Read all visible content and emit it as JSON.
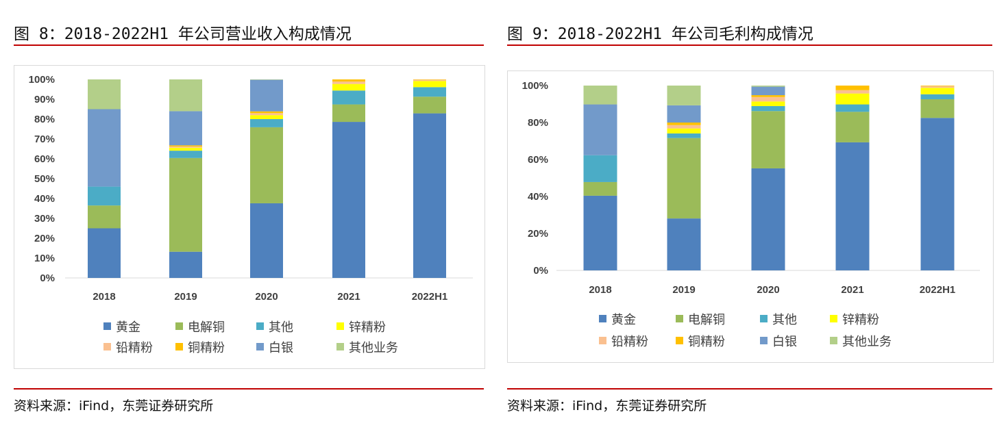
{
  "left": {
    "title": "图 8：2018-2022H1 年公司营业收入构成情况",
    "source": "资料来源：iFind，东莞证券研究所"
  },
  "right": {
    "title": "图 9：2018-2022H1 年公司毛利构成情况",
    "source": "资料来源：iFind，东莞证券研究所"
  },
  "chart_data": [
    {
      "type": "bar",
      "stacked": true,
      "title": "",
      "categories": [
        "2018",
        "2019",
        "2020",
        "2021",
        "2022H1"
      ],
      "ylim": [
        0,
        100
      ],
      "yticks": [
        "0%",
        "10%",
        "20%",
        "30%",
        "40%",
        "50%",
        "60%",
        "70%",
        "80%",
        "90%",
        "100%"
      ],
      "legend": "bottom",
      "grid": false,
      "series": [
        {
          "name": "黄金",
          "color": "#4f81bd",
          "values": [
            25,
            13.2,
            37.6,
            78.6,
            82.9
          ]
        },
        {
          "name": "电解铜",
          "color": "#9bbb59",
          "values": [
            11.5,
            47.2,
            38.3,
            8.8,
            8.4
          ]
        },
        {
          "name": "其他",
          "color": "#4bacc6",
          "values": [
            9.5,
            3.7,
            4.1,
            7,
            4.8
          ]
        },
        {
          "name": "锌精粉",
          "color": "#ffff00",
          "values": [
            0,
            1.5,
            2,
            3.3,
            3.1
          ]
        },
        {
          "name": "铅精粉",
          "color": "#fac090",
          "values": [
            0,
            0.6,
            1,
            1.2,
            0.6
          ]
        },
        {
          "name": "铜精粉",
          "color": "#ffc000",
          "values": [
            0,
            0.6,
            0.9,
            1.1,
            0.2
          ]
        },
        {
          "name": "白银",
          "color": "#729aca",
          "values": [
            39,
            17.2,
            15.9,
            0,
            0
          ]
        },
        {
          "name": "其他业务",
          "color": "#b3cf89",
          "values": [
            15,
            16,
            0.2,
            0,
            0
          ]
        }
      ]
    },
    {
      "type": "bar",
      "stacked": true,
      "title": "",
      "categories": [
        "2018",
        "2019",
        "2020",
        "2021",
        "2022H1"
      ],
      "ylim": [
        0,
        100
      ],
      "yticks": [
        "0%",
        "20%",
        "40%",
        "60%",
        "80%",
        "100%"
      ],
      "legend": "bottom",
      "grid": false,
      "series": [
        {
          "name": "黄金",
          "color": "#4f81bd",
          "values": [
            40.4,
            28.1,
            55.2,
            69.3,
            82.5
          ]
        },
        {
          "name": "电解铜",
          "color": "#9bbb59",
          "values": [
            7.4,
            43.5,
            31,
            16.5,
            10.1
          ]
        },
        {
          "name": "其他",
          "color": "#4bacc6",
          "values": [
            14.5,
            2.5,
            2.7,
            4,
            2.7
          ]
        },
        {
          "name": "锌精粉",
          "color": "#ffff00",
          "values": [
            0,
            2.7,
            2.5,
            5.9,
            3.5
          ]
        },
        {
          "name": "铅精粉",
          "color": "#fac090",
          "values": [
            0,
            1.8,
            2.4,
            1.8,
            0.9
          ]
        },
        {
          "name": "铜精粉",
          "color": "#ffc000",
          "values": [
            0,
            1.4,
            1,
            2.5,
            0.3
          ]
        },
        {
          "name": "白银",
          "color": "#729aca",
          "values": [
            27.5,
            9.3,
            4.6,
            0,
            0
          ]
        },
        {
          "name": "其他业务",
          "color": "#b3cf89",
          "values": [
            10.2,
            10.7,
            0.6,
            0,
            0
          ]
        }
      ]
    }
  ]
}
